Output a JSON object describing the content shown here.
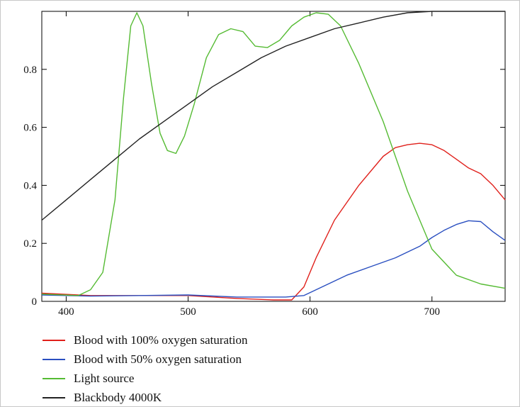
{
  "chart_data": {
    "type": "line",
    "title": "",
    "xlabel": "",
    "ylabel": "",
    "xlim": [
      380,
      760
    ],
    "ylim": [
      0,
      1
    ],
    "x_ticks": [
      400,
      500,
      600,
      700
    ],
    "y_ticks": [
      0,
      0.2,
      0.4,
      0.6,
      0.8
    ],
    "grid": false,
    "legend_position": "below",
    "series": [
      {
        "name": "Blood with 100% oxygen saturation",
        "color": "#e0201b",
        "points": [
          [
            380,
            0.028
          ],
          [
            420,
            0.02
          ],
          [
            460,
            0.02
          ],
          [
            500,
            0.02
          ],
          [
            540,
            0.01
          ],
          [
            570,
            0.005
          ],
          [
            585,
            0.005
          ],
          [
            595,
            0.05
          ],
          [
            605,
            0.15
          ],
          [
            620,
            0.28
          ],
          [
            640,
            0.4
          ],
          [
            660,
            0.5
          ],
          [
            670,
            0.53
          ],
          [
            680,
            0.54
          ],
          [
            690,
            0.545
          ],
          [
            700,
            0.54
          ],
          [
            710,
            0.52
          ],
          [
            720,
            0.49
          ],
          [
            730,
            0.46
          ],
          [
            740,
            0.44
          ],
          [
            750,
            0.4
          ],
          [
            760,
            0.35
          ]
        ]
      },
      {
        "name": "Blood with 50% oxygen saturation",
        "color": "#2a4fc0",
        "points": [
          [
            380,
            0.022
          ],
          [
            420,
            0.018
          ],
          [
            460,
            0.02
          ],
          [
            500,
            0.022
          ],
          [
            540,
            0.015
          ],
          [
            580,
            0.015
          ],
          [
            595,
            0.02
          ],
          [
            605,
            0.04
          ],
          [
            620,
            0.07
          ],
          [
            630,
            0.09
          ],
          [
            650,
            0.12
          ],
          [
            670,
            0.15
          ],
          [
            690,
            0.19
          ],
          [
            700,
            0.22
          ],
          [
            710,
            0.245
          ],
          [
            720,
            0.265
          ],
          [
            730,
            0.278
          ],
          [
            740,
            0.275
          ],
          [
            750,
            0.24
          ],
          [
            760,
            0.21
          ]
        ]
      },
      {
        "name": "Light source",
        "color": "#55bb33",
        "points": [
          [
            380,
            0.025
          ],
          [
            410,
            0.02
          ],
          [
            420,
            0.04
          ],
          [
            430,
            0.1
          ],
          [
            440,
            0.35
          ],
          [
            447,
            0.7
          ],
          [
            453,
            0.95
          ],
          [
            458,
            0.995
          ],
          [
            463,
            0.95
          ],
          [
            470,
            0.75
          ],
          [
            477,
            0.58
          ],
          [
            483,
            0.52
          ],
          [
            490,
            0.51
          ],
          [
            497,
            0.57
          ],
          [
            505,
            0.68
          ],
          [
            515,
            0.84
          ],
          [
            525,
            0.92
          ],
          [
            535,
            0.94
          ],
          [
            545,
            0.93
          ],
          [
            555,
            0.88
          ],
          [
            565,
            0.875
          ],
          [
            575,
            0.9
          ],
          [
            585,
            0.95
          ],
          [
            595,
            0.98
          ],
          [
            605,
            0.995
          ],
          [
            615,
            0.99
          ],
          [
            625,
            0.95
          ],
          [
            640,
            0.82
          ],
          [
            660,
            0.62
          ],
          [
            680,
            0.38
          ],
          [
            700,
            0.18
          ],
          [
            720,
            0.09
          ],
          [
            740,
            0.06
          ],
          [
            760,
            0.045
          ]
        ]
      },
      {
        "name": "Blackbody 4000K",
        "color": "#222222",
        "points": [
          [
            380,
            0.28
          ],
          [
            400,
            0.35
          ],
          [
            420,
            0.42
          ],
          [
            440,
            0.49
          ],
          [
            460,
            0.56
          ],
          [
            480,
            0.62
          ],
          [
            500,
            0.68
          ],
          [
            520,
            0.74
          ],
          [
            540,
            0.79
          ],
          [
            560,
            0.84
          ],
          [
            580,
            0.88
          ],
          [
            600,
            0.91
          ],
          [
            620,
            0.94
          ],
          [
            640,
            0.96
          ],
          [
            660,
            0.98
          ],
          [
            680,
            0.995
          ],
          [
            700,
            1.0
          ],
          [
            720,
            1.0
          ],
          [
            740,
            1.0
          ],
          [
            760,
            1.0
          ]
        ]
      }
    ]
  }
}
